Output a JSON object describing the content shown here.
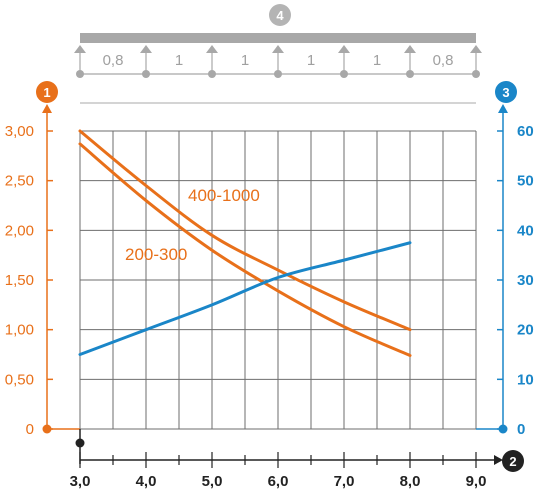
{
  "colors": {
    "orange": "#e8701a",
    "blue": "#1a86c8",
    "grid": "#6e6e6e",
    "beam": "#a8a8a8",
    "black": "#222222"
  },
  "badges": {
    "left_axis": "1",
    "beam": "4",
    "right_axis": "3",
    "x_axis": "2"
  },
  "beam": {
    "span_labels": [
      "0,8",
      "1",
      "1",
      "1",
      "1",
      "0,8"
    ]
  },
  "chart_data": {
    "type": "line",
    "x_ticks": [
      "3,0",
      "4,0",
      "5,0",
      "6,0",
      "7,0",
      "8,0",
      "9,0"
    ],
    "x_range": [
      3.0,
      9.0
    ],
    "y_left": {
      "ticks": [
        "0",
        "0,50",
        "1,00",
        "1,50",
        "2,00",
        "2,50",
        "3,00"
      ],
      "range": [
        0,
        3.0
      ]
    },
    "y_right": {
      "ticks": [
        "0",
        "10",
        "20",
        "30",
        "40",
        "50",
        "60"
      ],
      "range": [
        0,
        60
      ]
    },
    "grid": true,
    "series": [
      {
        "name": "400-1000",
        "axis": "left",
        "color": "orange",
        "x": [
          3.0,
          4.0,
          5.0,
          6.0,
          7.0,
          8.0
        ],
        "y": [
          3.0,
          2.45,
          1.95,
          1.6,
          1.28,
          1.0
        ]
      },
      {
        "name": "200-300",
        "axis": "left",
        "color": "orange",
        "x": [
          3.0,
          4.0,
          5.0,
          6.0,
          7.0,
          8.0
        ],
        "y": [
          2.87,
          2.3,
          1.8,
          1.39,
          1.03,
          0.74
        ]
      },
      {
        "axis": "right",
        "color": "blue",
        "x": [
          3.0,
          4.0,
          5.0,
          6.0,
          7.0,
          8.0
        ],
        "y": [
          15,
          20,
          25,
          30.5,
          34,
          37.5
        ]
      }
    ]
  }
}
